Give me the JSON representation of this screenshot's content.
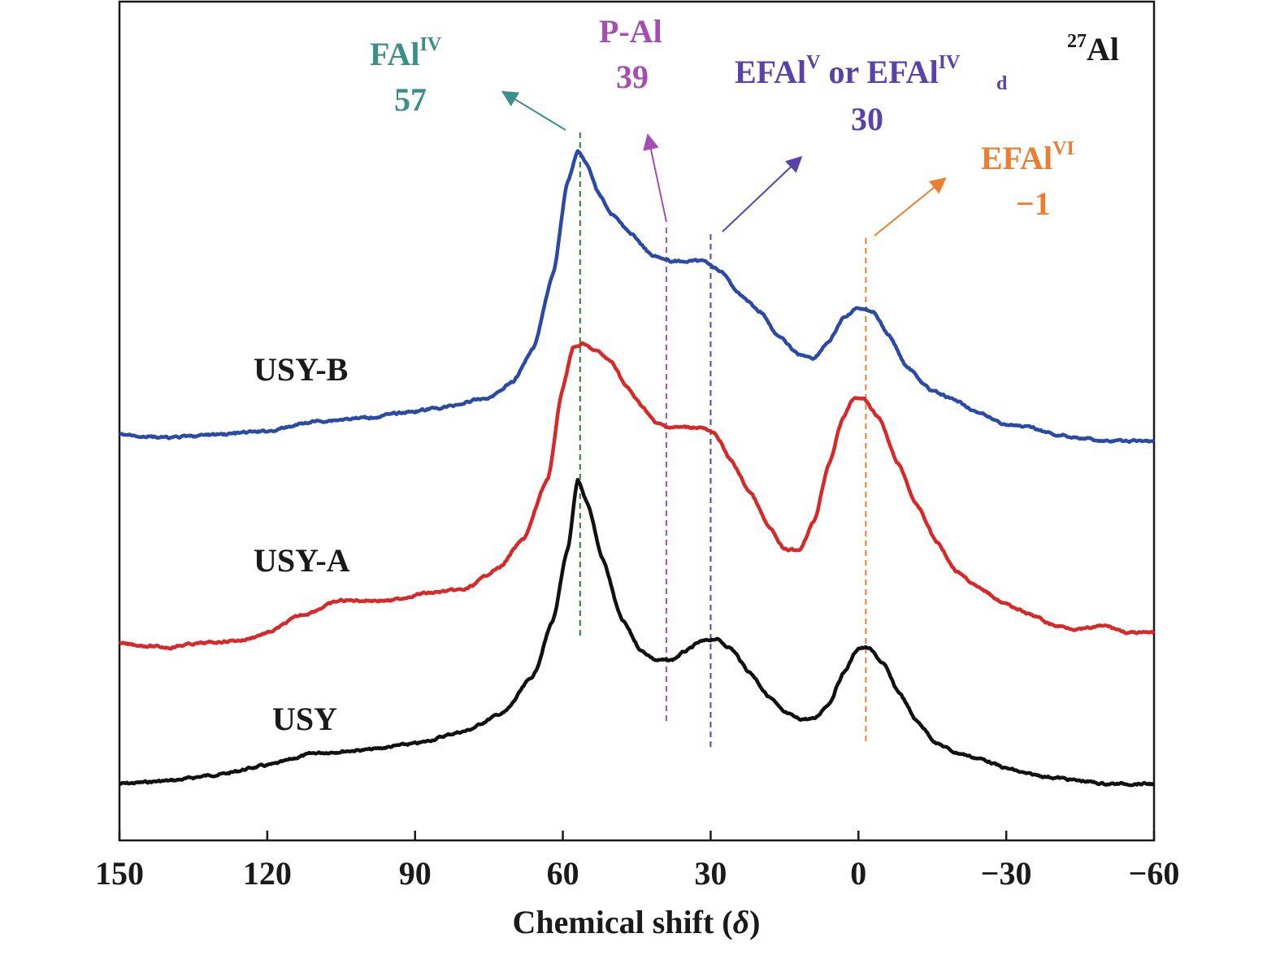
{
  "chart_data": {
    "type": "line",
    "title": "",
    "nucleus": {
      "sup": "27",
      "base": "Al"
    },
    "xlabel": "Chemical shift (",
    "xlabel_symbol": "δ",
    "xlabel_suffix": ")",
    "ylabel": "",
    "xlim": [
      150,
      -60
    ],
    "x_reversed": true,
    "xticks": [
      150,
      120,
      90,
      60,
      30,
      0,
      -30,
      -60
    ],
    "xtick_labels": [
      "150",
      "120",
      "90",
      "60",
      "30",
      "0",
      "−30",
      "−60"
    ],
    "grid": false,
    "series": [
      {
        "name": "USY",
        "color": "#111111",
        "points": [
          [
            150,
            0.02
          ],
          [
            140,
            0.03
          ],
          [
            130,
            0.05
          ],
          [
            120,
            0.08
          ],
          [
            110,
            0.12
          ],
          [
            100,
            0.13
          ],
          [
            90,
            0.15
          ],
          [
            80,
            0.19
          ],
          [
            72,
            0.25
          ],
          [
            66,
            0.37
          ],
          [
            62,
            0.55
          ],
          [
            59,
            0.78
          ],
          [
            57,
            1.0
          ],
          [
            55,
            0.93
          ],
          [
            52,
            0.75
          ],
          [
            48,
            0.55
          ],
          [
            44,
            0.45
          ],
          [
            41,
            0.42
          ],
          [
            38,
            0.42
          ],
          [
            35,
            0.45
          ],
          [
            32,
            0.48
          ],
          [
            29,
            0.49
          ],
          [
            26,
            0.46
          ],
          [
            22,
            0.38
          ],
          [
            18,
            0.3
          ],
          [
            15,
            0.25
          ],
          [
            12,
            0.23
          ],
          [
            9,
            0.23
          ],
          [
            6,
            0.28
          ],
          [
            3,
            0.38
          ],
          [
            0,
            0.46
          ],
          [
            -2,
            0.46
          ],
          [
            -5,
            0.41
          ],
          [
            -8,
            0.32
          ],
          [
            -12,
            0.22
          ],
          [
            -16,
            0.15
          ],
          [
            -20,
            0.12
          ],
          [
            -25,
            0.1
          ],
          [
            -30,
            0.07
          ],
          [
            -35,
            0.05
          ],
          [
            -40,
            0.04
          ],
          [
            -45,
            0.03
          ],
          [
            -50,
            0.02
          ],
          [
            -60,
            0.02
          ]
        ]
      },
      {
        "name": "USY-A",
        "color": "#d62a2a",
        "points": [
          [
            150,
            0.02
          ],
          [
            140,
            0.01
          ],
          [
            135,
            0.02
          ],
          [
            125,
            0.03
          ],
          [
            120,
            0.05
          ],
          [
            113,
            0.1
          ],
          [
            105,
            0.14
          ],
          [
            95,
            0.14
          ],
          [
            88,
            0.16
          ],
          [
            80,
            0.17
          ],
          [
            73,
            0.23
          ],
          [
            68,
            0.31
          ],
          [
            63,
            0.48
          ],
          [
            60,
            0.73
          ],
          [
            58,
            0.84
          ],
          [
            56,
            0.85
          ],
          [
            53,
            0.83
          ],
          [
            50,
            0.8
          ],
          [
            47,
            0.73
          ],
          [
            44,
            0.68
          ],
          [
            41,
            0.63
          ],
          [
            38,
            0.62
          ],
          [
            35,
            0.62
          ],
          [
            32,
            0.62
          ],
          [
            29,
            0.6
          ],
          [
            26,
            0.53
          ],
          [
            22,
            0.44
          ],
          [
            18,
            0.34
          ],
          [
            15,
            0.28
          ],
          [
            12,
            0.28
          ],
          [
            9,
            0.36
          ],
          [
            6,
            0.52
          ],
          [
            3,
            0.65
          ],
          [
            1,
            0.7
          ],
          [
            -1,
            0.7
          ],
          [
            -4,
            0.65
          ],
          [
            -8,
            0.52
          ],
          [
            -12,
            0.4
          ],
          [
            -16,
            0.3
          ],
          [
            -20,
            0.22
          ],
          [
            -25,
            0.17
          ],
          [
            -30,
            0.13
          ],
          [
            -35,
            0.1
          ],
          [
            -40,
            0.07
          ],
          [
            -45,
            0.06
          ],
          [
            -50,
            0.07
          ],
          [
            -55,
            0.05
          ],
          [
            -60,
            0.05
          ]
        ]
      },
      {
        "name": "USY-B",
        "color": "#2b4aa3",
        "points": [
          [
            150,
            0.04
          ],
          [
            140,
            0.03
          ],
          [
            130,
            0.04
          ],
          [
            120,
            0.05
          ],
          [
            110,
            0.08
          ],
          [
            100,
            0.09
          ],
          [
            90,
            0.11
          ],
          [
            85,
            0.12
          ],
          [
            75,
            0.15
          ],
          [
            70,
            0.2
          ],
          [
            66,
            0.3
          ],
          [
            62,
            0.52
          ],
          [
            59,
            0.8
          ],
          [
            57,
            0.89
          ],
          [
            55,
            0.85
          ],
          [
            53,
            0.77
          ],
          [
            50,
            0.7
          ],
          [
            46,
            0.64
          ],
          [
            42,
            0.58
          ],
          [
            38,
            0.56
          ],
          [
            35,
            0.56
          ],
          [
            31,
            0.56
          ],
          [
            28,
            0.53
          ],
          [
            24,
            0.46
          ],
          [
            20,
            0.41
          ],
          [
            16,
            0.33
          ],
          [
            12,
            0.28
          ],
          [
            9,
            0.27
          ],
          [
            6,
            0.32
          ],
          [
            3,
            0.39
          ],
          [
            0,
            0.42
          ],
          [
            -3,
            0.41
          ],
          [
            -6,
            0.34
          ],
          [
            -10,
            0.24
          ],
          [
            -15,
            0.17
          ],
          [
            -20,
            0.14
          ],
          [
            -25,
            0.1
          ],
          [
            -30,
            0.07
          ],
          [
            -35,
            0.06
          ],
          [
            -40,
            0.04
          ],
          [
            -45,
            0.03
          ],
          [
            -50,
            0.02
          ],
          [
            -60,
            0.02
          ]
        ]
      }
    ],
    "reference_lines": [
      {
        "label": "FAl",
        "sup": "IV",
        "sub": "",
        "value_label": "57",
        "x": 56.5,
        "color": "#3b8f87",
        "line_color": "#2e7d32"
      },
      {
        "label": "P-Al",
        "sup": "",
        "sub": "",
        "value_label": "39",
        "x": 39,
        "color": "#a34fb0",
        "line_color": "#a34fb0"
      },
      {
        "label": "EFAl",
        "sup": "V",
        "label_mid": " or EFAl",
        "sup2": "IV",
        "sub": "d",
        "value_label": "30",
        "x": 30,
        "color": "#5a43a8",
        "line_color": "#5a43a8"
      },
      {
        "label": "EFAl",
        "sup": "VI",
        "sub": "",
        "value_label": "−1",
        "x": -1.5,
        "color": "#ea7f33",
        "line_color": "#ea7f33"
      }
    ]
  }
}
